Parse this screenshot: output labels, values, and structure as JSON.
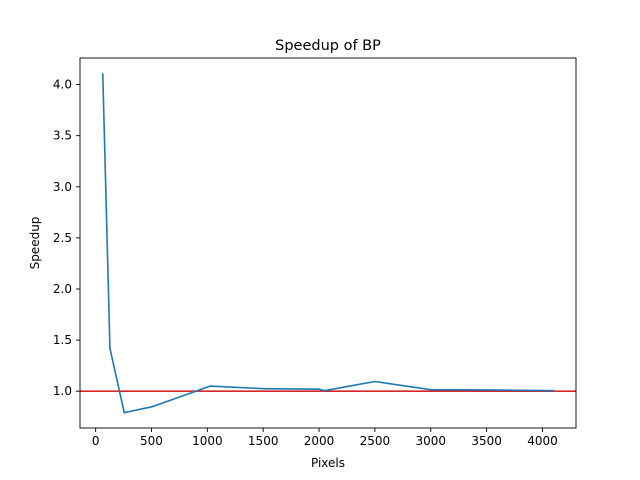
{
  "chart_data": {
    "type": "line",
    "title": "Speedup of BP",
    "xlabel": "Pixels",
    "ylabel": "Speedup",
    "xlim": [
      -140,
      4300
    ],
    "ylim": [
      0.64,
      4.26
    ],
    "xticks": [
      0,
      500,
      1000,
      1500,
      2000,
      2500,
      3000,
      3500,
      4000
    ],
    "yticks": [
      1.0,
      1.5,
      2.0,
      2.5,
      3.0,
      3.5,
      4.0
    ],
    "xtick_labels": [
      "0",
      "500",
      "1000",
      "1500",
      "2000",
      "2500",
      "3000",
      "3500",
      "4000"
    ],
    "ytick_labels": [
      "1.0",
      "1.5",
      "2.0",
      "2.5",
      "3.0",
      "3.5",
      "4.0"
    ],
    "grid": false,
    "series": [
      {
        "color": "#1f77b4",
        "x": [
          64,
          128,
          256,
          512,
          1024,
          1500,
          2000,
          2048,
          2500,
          3000,
          3500,
          4096
        ],
        "y": [
          4.1,
          1.42,
          0.79,
          0.85,
          1.05,
          1.025,
          1.02,
          1.005,
          1.095,
          1.015,
          1.012,
          1.005
        ]
      }
    ],
    "reference_lines": [
      {
        "orientation": "horizontal",
        "y": 1.0,
        "color": "#d62728"
      }
    ]
  }
}
